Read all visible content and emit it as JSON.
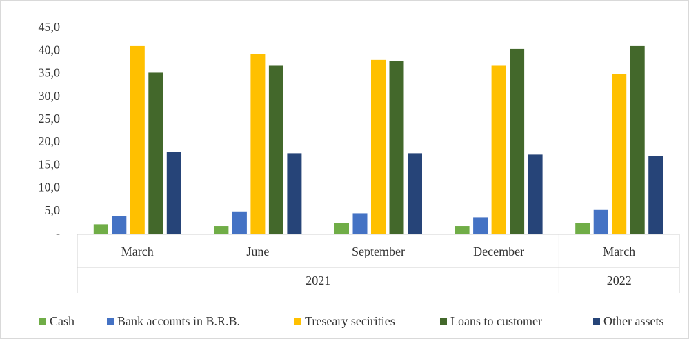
{
  "chart_data": {
    "type": "bar",
    "categories": [
      "March",
      "June",
      "September",
      "December",
      "March"
    ],
    "category_groups": [
      "2021",
      "2021",
      "2021",
      "2021",
      "2022"
    ],
    "series": [
      {
        "name": "Cash",
        "color": "#70ad47",
        "values": [
          2.2,
          1.8,
          2.5,
          1.8,
          2.5
        ]
      },
      {
        "name": "Bank accounts in B.R.B.",
        "color": "#4472c4",
        "values": [
          4.0,
          5.0,
          4.6,
          3.7,
          5.3
        ]
      },
      {
        "name": "Treseary secirities",
        "color": "#ffc000",
        "values": [
          41.1,
          39.3,
          38.1,
          36.8,
          35.0
        ]
      },
      {
        "name": "Loans to customer",
        "color": "#43682b",
        "values": [
          35.3,
          36.8,
          37.8,
          40.5,
          41.1
        ]
      },
      {
        "name": "Other assets",
        "color": "#264478",
        "values": [
          18.0,
          17.7,
          17.7,
          17.4,
          17.1
        ]
      }
    ],
    "ylim": [
      0,
      45
    ],
    "yticks": [
      {
        "value": 0,
        "label": "-"
      },
      {
        "value": 5,
        "label": "5,0"
      },
      {
        "value": 10,
        "label": "10,0"
      },
      {
        "value": 15,
        "label": "15,0"
      },
      {
        "value": 20,
        "label": "20,0"
      },
      {
        "value": 25,
        "label": "25,0"
      },
      {
        "value": 30,
        "label": "30,0"
      },
      {
        "value": 35,
        "label": "35,0"
      },
      {
        "value": 40,
        "label": "40,0"
      },
      {
        "value": 45,
        "label": "45,0"
      }
    ],
    "legend": "bottom"
  }
}
